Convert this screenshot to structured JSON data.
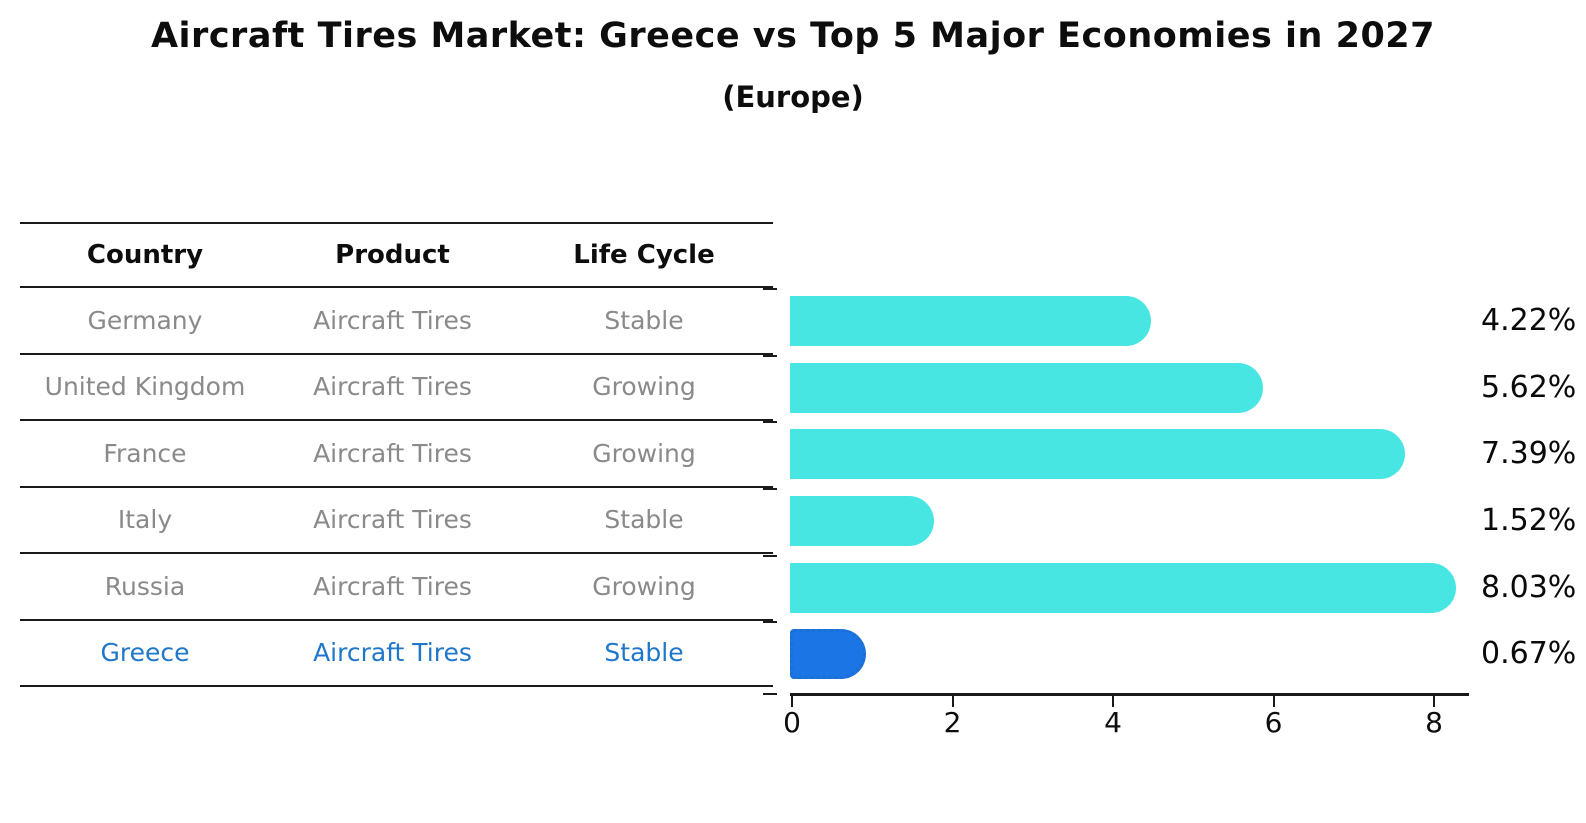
{
  "title": "Aircraft Tires Market: Greece vs Top 5 Major Economies in 2027",
  "subtitle": "(Europe)",
  "table": {
    "headers": [
      "Country",
      "Product",
      "Life Cycle"
    ],
    "rows": [
      {
        "country": "Germany",
        "product": "Aircraft Tires",
        "life_cycle": "Stable",
        "highlight": false
      },
      {
        "country": "United Kingdom",
        "product": "Aircraft Tires",
        "life_cycle": "Growing",
        "highlight": false
      },
      {
        "country": "France",
        "product": "Aircraft Tires",
        "life_cycle": "Growing",
        "highlight": false
      },
      {
        "country": "Italy",
        "product": "Aircraft Tires",
        "life_cycle": "Stable",
        "highlight": false
      },
      {
        "country": "Russia",
        "product": "Aircraft Tires",
        "life_cycle": "Growing",
        "highlight": false
      },
      {
        "country": "Greece",
        "product": "Aircraft Tires",
        "life_cycle": "Stable",
        "highlight": true
      }
    ]
  },
  "chart_data": {
    "type": "bar",
    "orientation": "horizontal",
    "title": "Aircraft Tires Market: Greece vs Top 5 Major Economies in 2027 (Europe)",
    "categories": [
      "Germany",
      "United Kingdom",
      "France",
      "Italy",
      "Russia",
      "Greece"
    ],
    "values": [
      4.22,
      5.62,
      7.39,
      1.52,
      8.03,
      0.67
    ],
    "value_labels": [
      "4.22%",
      "5.62%",
      "7.39%",
      "1.52%",
      "8.03%",
      "0.67%"
    ],
    "xlabel": "",
    "ylabel": "",
    "xlim": [
      0,
      8.46
    ],
    "xticks": [
      0,
      2,
      4,
      6,
      8
    ],
    "xtick_labels": [
      "0",
      "2",
      "4",
      "6",
      "8"
    ],
    "grid": false,
    "legend": "none",
    "highlight_index": 5
  },
  "colors": {
    "background": "#ffffff",
    "bar": "#48e6e3",
    "highlight_bar": "#1c75e4",
    "highlight_border": "#1a6fd4",
    "highlight_text": "#1f77c9",
    "row_text": "#8a8a8a",
    "header_text": "#0d0d0d",
    "line": "#1a1a1a",
    "axis": "#1a1a1a"
  }
}
